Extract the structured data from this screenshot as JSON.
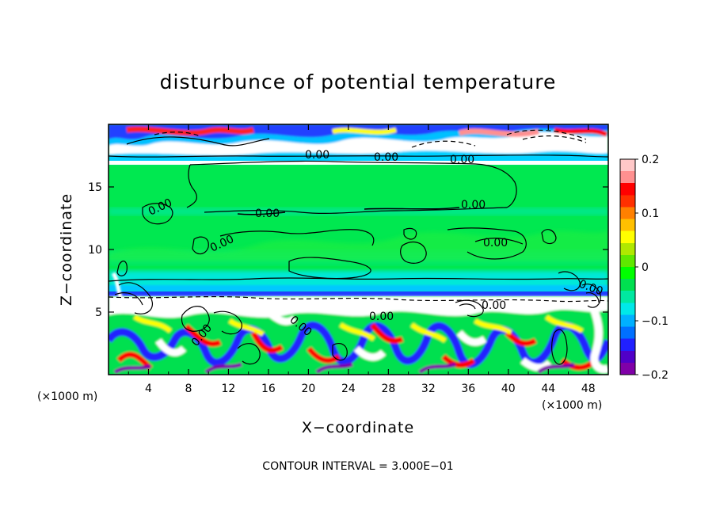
{
  "chart_data": {
    "type": "heatmap",
    "title": "disturbunce of potential temperature",
    "xlabel": "X−coordinate",
    "ylabel": "Z−coordinate",
    "x_unit": "(×1000 m)",
    "y_unit": "(×1000 m)",
    "xlim": [
      0,
      50
    ],
    "ylim": [
      0,
      20
    ],
    "x_ticks": [
      "4",
      "8",
      "12",
      "16",
      "20",
      "24",
      "28",
      "32",
      "36",
      "40",
      "44",
      "48"
    ],
    "y_ticks": [
      "5",
      "10",
      "15"
    ],
    "colorbar": {
      "ticks": [
        "0.2",
        "0.1",
        "0",
        "−0.1",
        "−0.2"
      ],
      "range": [
        -0.2,
        0.2
      ],
      "colors": [
        "#8000a8",
        "#5000c8",
        "#2020ff",
        "#0070ff",
        "#00b0ff",
        "#00e8e8",
        "#00e8a0",
        "#00e050",
        "#00ff00",
        "#60e800",
        "#b0e800",
        "#ffff00",
        "#ffc000",
        "#ff8000",
        "#ff3000",
        "#ff0000",
        "#ff9090",
        "#ffc8c8"
      ]
    },
    "contour_labels": [
      "0.00",
      "0.00",
      "0.00",
      "0.00",
      "0.00",
      "0.00",
      "0.00",
      "0.00",
      "0.00",
      "0.00",
      "0.00",
      "0.00",
      "0.00"
    ],
    "note": "CONTOUR INTERVAL = 3.000E−01"
  }
}
